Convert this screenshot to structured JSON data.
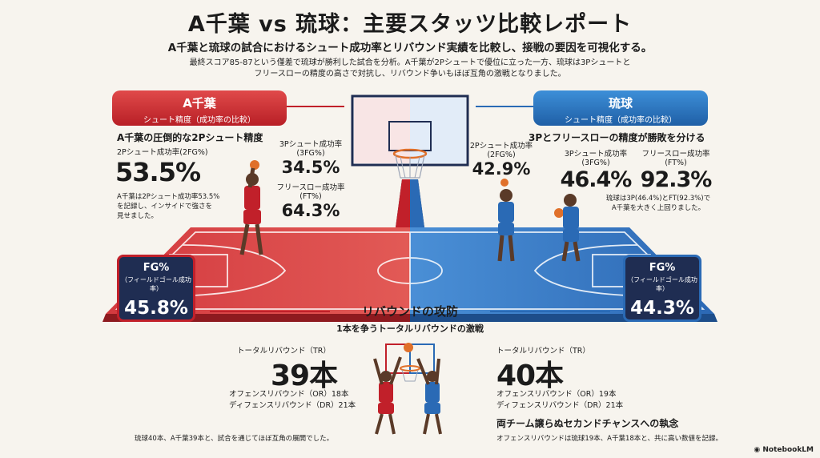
{
  "header": {
    "title": "A千葉 vs 琉球：主要スタッツ比較レポート",
    "subtitle": "A千葉と琉球の試合におけるシュート成功率とリバウンド実績を比較し、接戦の要因を可視化する。",
    "description_1": "最終スコア85-87という僅差で琉球が勝利した試合を分析。A千葉が2Pシュートで優位に立った一方、琉球は3Pシュートと",
    "description_2": "フリースローの精度の高さで対抗し、リバウンド争いもほぼ互角の激戦となりました。"
  },
  "chiba": {
    "team": "A千葉",
    "banner_sub": "シュート精度（成功率の比較）",
    "heading": "A千葉の圧倒的な2Pシュート精度",
    "fg2_label": "2Pシュート成功率(2FG%)",
    "fg2_value": "53.5%",
    "fg3_label_1": "3Pシュート成功率",
    "fg3_label_2": "(3FG%)",
    "fg3_value": "34.5%",
    "ft_label_1": "フリースロー成功率",
    "ft_label_2": "(FT%)",
    "ft_value": "64.3%",
    "note_1": "A千葉は2Pシュート成功率53.5%",
    "note_2": "を記録し、インサイドで強さを",
    "note_3": "見せました。",
    "fg_label": "FG%",
    "fg_sub": "（フィールドゴール成功率）",
    "fg_value": "45.8%",
    "color": "#c1202a"
  },
  "ryukyu": {
    "team": "琉球",
    "banner_sub": "シュート精度（成功率の比較）",
    "heading": "3Pとフリースローの精度が勝敗を分ける",
    "fg2_label_1": "2Pシュート成功率",
    "fg2_label_2": "(2FG%)",
    "fg2_value": "42.9%",
    "fg3_label_1": "3Pシュート成功率",
    "fg3_label_2": "(3FG%)",
    "fg3_value": "46.4%",
    "ft_label": "フリースロー成功率",
    "ft_label_2": "(FT%)",
    "ft_value": "92.3%",
    "note_1": "琉球は3P(46.4%)とFT(92.3%)で",
    "note_2": "A千葉を大きく上回りました。",
    "fg_label": "FG%",
    "fg_sub": "（フィールドゴール成功率）",
    "fg_value": "44.3%",
    "color": "#2a6ab5"
  },
  "rebound": {
    "title": "リバウンドの攻防",
    "subtitle": "1本を争うトータルリバウンドの激戦",
    "chiba_tr_label": "トータルリバウンド（TR）",
    "chiba_tr_value": "39本",
    "chiba_or": "オフェンスリバウンド（OR）18本",
    "chiba_dr": "ディフェンスリバウンド（DR）21本",
    "chiba_note": "琉球40本、A千葉39本と、試合を通じてほぼ互角の展開でした。",
    "ryukyu_tr_label": "トータルリバウンド（TR）",
    "ryukyu_tr_value": "40本",
    "ryukyu_or": "オフェンスリバウンド（OR）19本",
    "ryukyu_dr": "ディフェンスリバウンド（DR）21本",
    "ryukyu_heading": "両チーム譲らぬセカンドチャンスへの執念",
    "ryukyu_note": "オフェンスリバウンドは琉球19本、A千葉18本と、共に高い数値を記録。"
  },
  "footer": {
    "brand": "NotebookLM"
  },
  "icons": {
    "court": "basketball-court-illustration",
    "hoop": "basketball-hoop-icon",
    "player": "basketball-player-icon",
    "brand": "notebooklm-logo-icon"
  }
}
